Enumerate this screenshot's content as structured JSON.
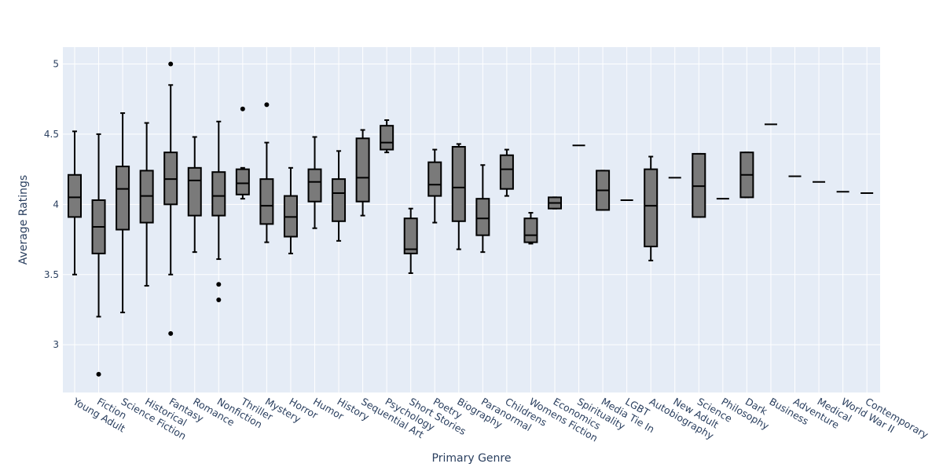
{
  "chart_data": {
    "type": "box",
    "title": "",
    "xlabel": "Primary Genre",
    "ylabel": "Average Ratings",
    "ylim": [
      2.66,
      5.12
    ],
    "yticks": [
      3,
      3.5,
      4,
      4.5,
      5
    ],
    "grid": true,
    "legend": "none",
    "colors": {
      "plot_bg": "#e5ecf6",
      "grid": "#ffffff",
      "box_fill": "#7a7a7a",
      "box_line": "#000000",
      "text": "#2a3f5f"
    },
    "boxes": [
      {
        "category": "Young Adult",
        "lower_fence": 3.5,
        "q1": 3.91,
        "median": 4.05,
        "q3": 4.21,
        "upper_fence": 4.52,
        "outliers": []
      },
      {
        "category": "Fiction",
        "lower_fence": 3.2,
        "q1": 3.65,
        "median": 3.84,
        "q3": 4.03,
        "upper_fence": 4.5,
        "outliers": [
          2.79
        ]
      },
      {
        "category": "Science Fiction",
        "lower_fence": 3.23,
        "q1": 3.82,
        "median": 4.11,
        "q3": 4.27,
        "upper_fence": 4.65,
        "outliers": []
      },
      {
        "category": "Historical",
        "lower_fence": 3.42,
        "q1": 3.87,
        "median": 4.06,
        "q3": 4.24,
        "upper_fence": 4.58,
        "outliers": []
      },
      {
        "category": "Fantasy",
        "lower_fence": 3.5,
        "q1": 4.0,
        "median": 4.18,
        "q3": 4.37,
        "upper_fence": 4.85,
        "outliers": [
          5.0,
          3.08
        ]
      },
      {
        "category": "Romance",
        "lower_fence": 3.66,
        "q1": 3.92,
        "median": 4.17,
        "q3": 4.26,
        "upper_fence": 4.48,
        "outliers": []
      },
      {
        "category": "Nonfiction",
        "lower_fence": 3.61,
        "q1": 3.92,
        "median": 4.06,
        "q3": 4.23,
        "upper_fence": 4.59,
        "outliers": [
          3.43,
          3.32
        ]
      },
      {
        "category": "Thriller",
        "lower_fence": 4.04,
        "q1": 4.07,
        "median": 4.15,
        "q3": 4.25,
        "upper_fence": 4.26,
        "outliers": [
          4.68
        ]
      },
      {
        "category": "Mystery",
        "lower_fence": 3.73,
        "q1": 3.86,
        "median": 3.99,
        "q3": 4.18,
        "upper_fence": 4.44,
        "outliers": [
          4.71
        ]
      },
      {
        "category": "Horror",
        "lower_fence": 3.65,
        "q1": 3.77,
        "median": 3.91,
        "q3": 4.06,
        "upper_fence": 4.26,
        "outliers": []
      },
      {
        "category": "Humor",
        "lower_fence": 3.83,
        "q1": 4.02,
        "median": 4.16,
        "q3": 4.25,
        "upper_fence": 4.48,
        "outliers": []
      },
      {
        "category": "History",
        "lower_fence": 3.74,
        "q1": 3.88,
        "median": 4.08,
        "q3": 4.18,
        "upper_fence": 4.38,
        "outliers": []
      },
      {
        "category": "Sequential Art",
        "lower_fence": 3.92,
        "q1": 4.02,
        "median": 4.19,
        "q3": 4.47,
        "upper_fence": 4.53,
        "outliers": []
      },
      {
        "category": "Psychology",
        "lower_fence": 4.37,
        "q1": 4.39,
        "median": 4.44,
        "q3": 4.56,
        "upper_fence": 4.6,
        "outliers": []
      },
      {
        "category": "Short Stories",
        "lower_fence": 3.51,
        "q1": 3.65,
        "median": 3.68,
        "q3": 3.9,
        "upper_fence": 3.97,
        "outliers": []
      },
      {
        "category": "Poetry",
        "lower_fence": 3.87,
        "q1": 4.06,
        "median": 4.14,
        "q3": 4.3,
        "upper_fence": 4.39,
        "outliers": []
      },
      {
        "category": "Biography",
        "lower_fence": 3.68,
        "q1": 3.88,
        "median": 4.12,
        "q3": 4.41,
        "upper_fence": 4.43,
        "outliers": []
      },
      {
        "category": "Paranormal",
        "lower_fence": 3.66,
        "q1": 3.78,
        "median": 3.9,
        "q3": 4.04,
        "upper_fence": 4.28,
        "outliers": []
      },
      {
        "category": "Childrens",
        "lower_fence": 4.06,
        "q1": 4.11,
        "median": 4.25,
        "q3": 4.35,
        "upper_fence": 4.39,
        "outliers": []
      },
      {
        "category": "Womens Fiction",
        "lower_fence": 3.72,
        "q1": 3.73,
        "median": 3.78,
        "q3": 3.9,
        "upper_fence": 3.94,
        "outliers": []
      },
      {
        "category": "Economics",
        "lower_fence": 3.97,
        "q1": 3.97,
        "median": 4.01,
        "q3": 4.05,
        "upper_fence": 4.05,
        "outliers": []
      },
      {
        "category": "Spirituality",
        "lower_fence": 4.42,
        "q1": 4.42,
        "median": 4.42,
        "q3": 4.42,
        "upper_fence": 4.42,
        "outliers": []
      },
      {
        "category": "Media Tie In",
        "lower_fence": 3.96,
        "q1": 3.96,
        "median": 4.1,
        "q3": 4.24,
        "upper_fence": 4.24,
        "outliers": []
      },
      {
        "category": "LGBT",
        "lower_fence": 4.03,
        "q1": 4.03,
        "median": 4.03,
        "q3": 4.03,
        "upper_fence": 4.03,
        "outliers": []
      },
      {
        "category": "Autobiography",
        "lower_fence": 3.6,
        "q1": 3.7,
        "median": 3.99,
        "q3": 4.25,
        "upper_fence": 4.34,
        "outliers": []
      },
      {
        "category": "New Adult",
        "lower_fence": 4.19,
        "q1": 4.19,
        "median": 4.19,
        "q3": 4.19,
        "upper_fence": 4.19,
        "outliers": []
      },
      {
        "category": "Science",
        "lower_fence": 3.91,
        "q1": 3.91,
        "median": 4.13,
        "q3": 4.36,
        "upper_fence": 4.36,
        "outliers": []
      },
      {
        "category": "Philosophy",
        "lower_fence": 4.04,
        "q1": 4.04,
        "median": 4.04,
        "q3": 4.04,
        "upper_fence": 4.04,
        "outliers": []
      },
      {
        "category": "Dark",
        "lower_fence": 4.05,
        "q1": 4.05,
        "median": 4.21,
        "q3": 4.37,
        "upper_fence": 4.37,
        "outliers": []
      },
      {
        "category": "Business",
        "lower_fence": 4.57,
        "q1": 4.57,
        "median": 4.57,
        "q3": 4.57,
        "upper_fence": 4.57,
        "outliers": []
      },
      {
        "category": "Adventure",
        "lower_fence": 4.2,
        "q1": 4.2,
        "median": 4.2,
        "q3": 4.2,
        "upper_fence": 4.2,
        "outliers": []
      },
      {
        "category": "Medical",
        "lower_fence": 4.16,
        "q1": 4.16,
        "median": 4.16,
        "q3": 4.16,
        "upper_fence": 4.16,
        "outliers": []
      },
      {
        "category": "World War II",
        "lower_fence": 4.09,
        "q1": 4.09,
        "median": 4.09,
        "q3": 4.09,
        "upper_fence": 4.09,
        "outliers": []
      },
      {
        "category": "Contemporary",
        "lower_fence": 4.08,
        "q1": 4.08,
        "median": 4.08,
        "q3": 4.08,
        "upper_fence": 4.08,
        "outliers": []
      }
    ]
  }
}
